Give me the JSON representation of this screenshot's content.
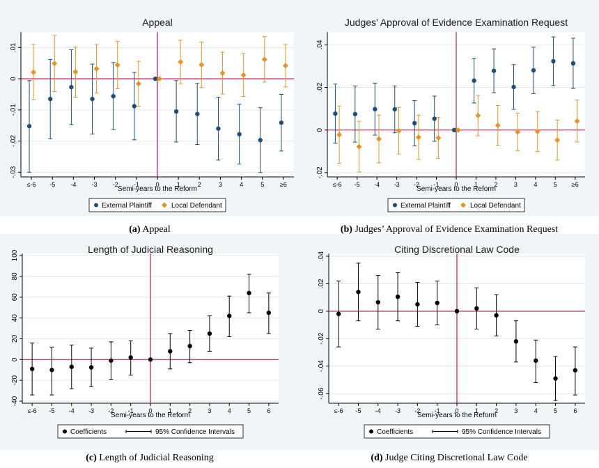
{
  "colors": {
    "external_plaintiff": "#1f4e79",
    "local_defendant": "#e69522",
    "coefficient": "#000000",
    "reform_line": "#c2185b",
    "zero_line": "#c2185b",
    "plot_bg": "#ffffff",
    "outer_bg": "#f2f5f8",
    "grid": "#e6e6e6"
  },
  "chart_data": [
    {
      "id": "a",
      "type": "scatter",
      "title": "Appeal",
      "caption_label": "(a)",
      "caption_text": "Appeal",
      "xlabel": "Semi-years to the Reform",
      "ylabel": "",
      "x_tick_labels": [
        "≤-6",
        "-5",
        "-4",
        "-3",
        "-2",
        "-1",
        "0",
        "1",
        "2",
        "3",
        "4",
        "5",
        "≥6"
      ],
      "ylim": [
        -0.0315,
        0.015
      ],
      "y_ticks": [
        -0.03,
        -0.02,
        -0.01,
        0,
        0.01
      ],
      "y_tick_labels": [
        "-.03",
        "-.02",
        "-.01",
        "0",
        ".01"
      ],
      "grid": true,
      "reform_x": 0,
      "legend_position": "bottom",
      "series": [
        {
          "name": "External Plaintiff",
          "color_key": "external_plaintiff",
          "marker": "circle",
          "offset": -0.1,
          "values": [
            -0.0152,
            -0.0065,
            -0.0027,
            -0.0065,
            -0.0056,
            -0.0088,
            0,
            -0.0105,
            -0.0113,
            -0.016,
            -0.0178,
            -0.0197,
            -0.0141
          ],
          "ci_low": [
            -0.03,
            -0.0193,
            -0.0147,
            -0.0177,
            -0.0163,
            -0.0196,
            0,
            -0.0203,
            -0.0211,
            -0.0261,
            -0.0274,
            -0.0301,
            -0.0232
          ],
          "ci_high": [
            -0.0006,
            0.0062,
            0.0093,
            0.0047,
            0.0052,
            0.002,
            0,
            -0.0006,
            -0.0015,
            -0.0059,
            -0.0082,
            -0.0093,
            -0.005
          ]
        },
        {
          "name": "Local Defendant",
          "color_key": "local_defendant",
          "marker": "diamond",
          "offset": 0.1,
          "values": [
            0.0021,
            0.0049,
            0.0022,
            0.0032,
            0.0044,
            -0.0016,
            0,
            0.0054,
            0.0045,
            0.0018,
            0.0012,
            0.0062,
            0.0042
          ],
          "ci_low": [
            -0.0068,
            -0.0041,
            -0.0059,
            -0.0046,
            -0.0032,
            -0.0088,
            0,
            -0.0016,
            -0.0028,
            -0.0049,
            -0.0057,
            -0.0011,
            -0.0026
          ],
          "ci_high": [
            0.011,
            0.0139,
            0.0102,
            0.011,
            0.012,
            0.0056,
            0,
            0.0124,
            0.0118,
            0.0085,
            0.0081,
            0.0135,
            0.011
          ]
        }
      ]
    },
    {
      "id": "b",
      "type": "scatter",
      "title": "Judges' Approval of Evidence Examination Request",
      "caption_label": "(b)",
      "caption_text": "Judges’ Approval of Evidence Examination Request",
      "xlabel": "Semi-years to the Reform",
      "ylabel": "",
      "x_tick_labels": [
        "≤-6",
        "-5",
        "-4",
        "-3",
        "-2",
        "-1",
        "0",
        "1",
        "2",
        "3",
        "4",
        "5",
        "≥6"
      ],
      "ylim": [
        -0.022,
        0.046
      ],
      "y_ticks": [
        -0.02,
        0,
        0.02,
        0.04
      ],
      "y_tick_labels": [
        "-.02",
        "0",
        ".02",
        ".04"
      ],
      "grid": true,
      "reform_x": 0,
      "legend_position": "bottom",
      "series": [
        {
          "name": "External Plaintiff",
          "color_key": "external_plaintiff",
          "marker": "circle",
          "offset": -0.1,
          "values": [
            0.0077,
            0.0075,
            0.0098,
            0.0097,
            0.0032,
            0.0053,
            0,
            0.0232,
            0.0278,
            0.0202,
            0.028,
            0.0323,
            0.0313
          ],
          "ci_low": [
            -0.0062,
            -0.0057,
            -0.0024,
            -0.0013,
            -0.0074,
            -0.0053,
            0,
            0.0127,
            0.0175,
            0.0097,
            0.0171,
            0.0209,
            0.0195
          ],
          "ci_high": [
            0.0216,
            0.0207,
            0.022,
            0.0207,
            0.0138,
            0.0159,
            0,
            0.0337,
            0.0381,
            0.0307,
            0.0389,
            0.0437,
            0.0431
          ]
        },
        {
          "name": "Local Defendant",
          "color_key": "local_defendant",
          "marker": "diamond",
          "offset": 0.1,
          "values": [
            -0.0022,
            -0.0078,
            -0.0042,
            -0.0003,
            -0.0034,
            -0.0037,
            0,
            0.0068,
            0.0022,
            -0.0009,
            -0.0007,
            -0.0047,
            0.0042
          ],
          "ci_low": [
            -0.0157,
            -0.0197,
            -0.0154,
            -0.0112,
            -0.0138,
            -0.0133,
            0,
            -0.0027,
            -0.0071,
            -0.0097,
            -0.0101,
            -0.0141,
            -0.0056
          ],
          "ci_high": [
            0.0113,
            0.0041,
            0.007,
            0.0106,
            0.007,
            0.0059,
            0,
            0.0163,
            0.0115,
            0.0079,
            0.0087,
            0.0047,
            0.014
          ]
        }
      ]
    },
    {
      "id": "c",
      "type": "scatter",
      "title": "Length of Judicial Reasoning",
      "caption_label": "(c)",
      "caption_text": "Length of Judicial Reasoning",
      "xlabel": "Semi-years to the Reform",
      "ylabel": "",
      "x_tick_labels": [
        "≤-6",
        "-5",
        "-4",
        "-3",
        "-2",
        "-1",
        "0",
        "1",
        "2",
        "3",
        "4",
        "5",
        "6"
      ],
      "ylim": [
        -42,
        102
      ],
      "y_ticks": [
        -40,
        -20,
        0,
        20,
        40,
        60,
        80,
        100
      ],
      "y_tick_labels": [
        "-40",
        "-20",
        "0",
        "20",
        "40",
        "60",
        "80",
        "100"
      ],
      "grid": true,
      "reform_x": 0,
      "legend_position": "bottom",
      "series": [
        {
          "name": "Coefficients",
          "ci_name": "95% Confidence Intervals",
          "color_key": "coefficient",
          "marker": "circle",
          "offset": 0,
          "values": [
            -9,
            -10,
            -7,
            -7.5,
            -1,
            2,
            0,
            8,
            13,
            25,
            42,
            64,
            45
          ],
          "ci_low": [
            -34,
            -34,
            -28,
            -26,
            -19,
            -15,
            0,
            -9,
            -3,
            8,
            22,
            45,
            25
          ],
          "ci_high": [
            16,
            12,
            14,
            11,
            17,
            18,
            0,
            25,
            28,
            42,
            61,
            82,
            64
          ]
        }
      ]
    },
    {
      "id": "d",
      "type": "scatter",
      "title": "Citing Discretional Law Code",
      "caption_label": "(d)",
      "caption_text": "Judge Citing Discretional Law Code",
      "xlabel": "Semi-years to the Reform",
      "ylabel": "",
      "x_tick_labels": [
        "≤-6",
        "-5",
        "-4",
        "-3",
        "-2",
        "-1",
        "0",
        "1",
        "2",
        "3",
        "4",
        "5",
        "6"
      ],
      "ylim": [
        -0.067,
        0.042
      ],
      "y_ticks": [
        -0.06,
        -0.04,
        -0.02,
        0,
        0.02,
        0.04
      ],
      "y_tick_labels": [
        "-.06",
        "-.04",
        "-.02",
        "0",
        ".02",
        ".04"
      ],
      "grid": true,
      "reform_x": 0,
      "legend_position": "bottom",
      "series": [
        {
          "name": "Coefficients",
          "ci_name": "95% Confidence Intervals",
          "color_key": "coefficient",
          "marker": "circle",
          "offset": 0,
          "values": [
            -0.002,
            0.014,
            0.0065,
            0.0105,
            0.005,
            0.006,
            0,
            0.002,
            -0.003,
            -0.022,
            -0.036,
            -0.049,
            -0.043
          ],
          "ci_low": [
            -0.026,
            -0.007,
            -0.013,
            -0.007,
            -0.011,
            -0.01,
            0,
            -0.013,
            -0.018,
            -0.037,
            -0.052,
            -0.065,
            -0.061
          ],
          "ci_high": [
            0.022,
            0.035,
            0.026,
            0.028,
            0.021,
            0.022,
            0,
            0.017,
            0.012,
            -0.007,
            -0.021,
            -0.033,
            -0.026
          ]
        }
      ]
    }
  ]
}
